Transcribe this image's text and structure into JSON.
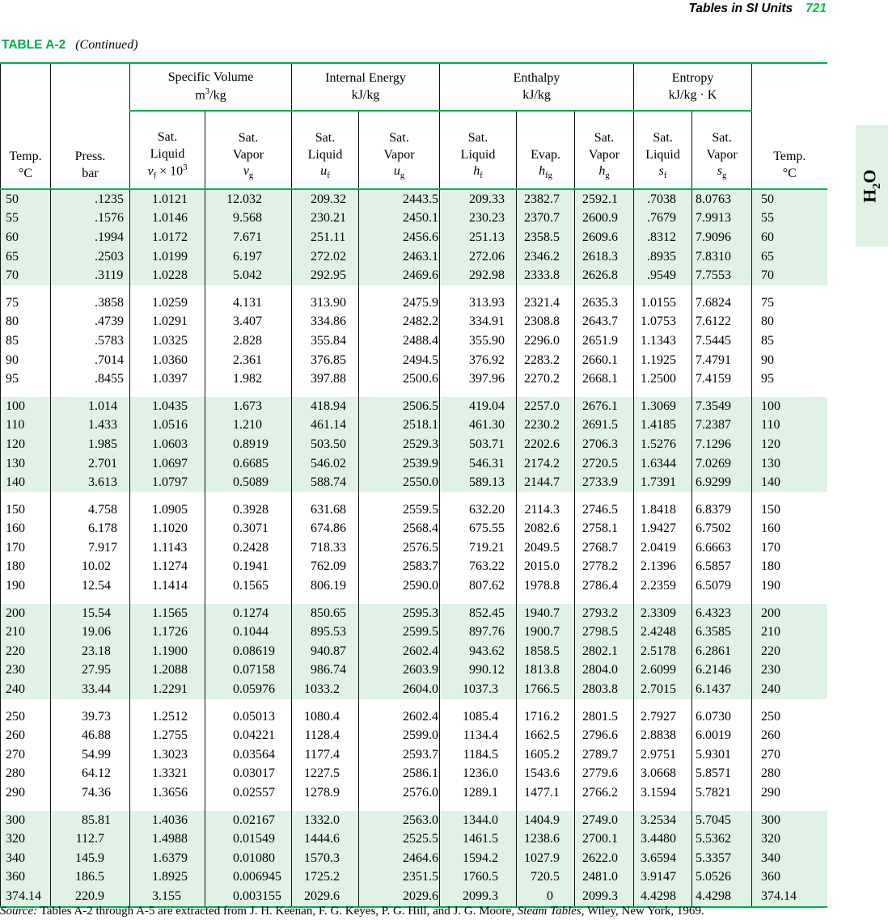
{
  "page": {
    "running_head": "Tables in SI Units",
    "page_number": "721",
    "table_label": "TABLE A-2",
    "table_continued": "(Continued)",
    "side_tab": {
      "pre": "H",
      "sub": "2",
      "post": "O"
    },
    "source": {
      "label": "Source:",
      "text1": " Tables A-2 through A-5 are extracted from J. H. Keenan, F. G. Keyes, P. G. Hill, and J. G. Moore, ",
      "title_italic": "Steam Tables,",
      "text2": " Wiley, New York, 1969."
    }
  },
  "colors": {
    "green_rule": "#00AE4E",
    "green_page_number": "#00C24A",
    "band_background": "#E0F2E6"
  },
  "table": {
    "corner_left": {
      "line1": "Temp.",
      "line2": "°C"
    },
    "corner_press": {
      "line1": "Press.",
      "line2": "bar"
    },
    "corner_right": {
      "line1": "Temp.",
      "line2": "°C"
    },
    "group_headers": {
      "specific_volume": {
        "title": "Specific Volume",
        "unit_base": "m",
        "unit_sup": "3",
        "unit_rest": "/kg"
      },
      "internal_energy": {
        "title": "Internal Energy",
        "unit": "kJ/kg"
      },
      "enthalpy": {
        "title": "Enthalpy",
        "unit": "kJ/kg"
      },
      "entropy": {
        "title": "Entropy",
        "unit": "kJ/kg · K"
      }
    },
    "sub_headers": [
      {
        "l1": "Sat.",
        "l2": "Liquid",
        "var": "v",
        "sub": "f",
        "mult": " × 10",
        "sup": "3"
      },
      {
        "l1": "Sat.",
        "l2": "Vapor",
        "var": "v",
        "sub": "g"
      },
      {
        "l1": "Sat.",
        "l2": "Liquid",
        "var": "u",
        "sub": "f"
      },
      {
        "l1": "Sat.",
        "l2": "Vapor",
        "var": "u",
        "sub": "g"
      },
      {
        "l1": "Sat.",
        "l2": "Liquid",
        "var": "h",
        "sub": "f"
      },
      {
        "l1": "Evap.",
        "var": "h",
        "sub": "fg"
      },
      {
        "l1": "Sat.",
        "l2": "Vapor",
        "var": "h",
        "sub": "g"
      },
      {
        "l1": "Sat.",
        "l2": "Liquid",
        "var": "s",
        "sub": "f"
      },
      {
        "l1": "Sat.",
        "l2": "Vapor",
        "var": "s",
        "sub": "g"
      }
    ],
    "groups": [
      {
        "shaded": true,
        "rows": [
          [
            "50",
            ".1235",
            "1.0121",
            "12.032",
            "209.32",
            "2443.5",
            "209.33",
            "2382.7",
            "2592.1",
            ".7038",
            "8.0763",
            "50"
          ],
          [
            "55",
            ".1576",
            "1.0146",
            "9.568",
            "230.21",
            "2450.1",
            "230.23",
            "2370.7",
            "2600.9",
            ".7679",
            "7.9913",
            "55"
          ],
          [
            "60",
            ".1994",
            "1.0172",
            "7.671",
            "251.11",
            "2456.6",
            "251.13",
            "2358.5",
            "2609.6",
            ".8312",
            "7.9096",
            "60"
          ],
          [
            "65",
            ".2503",
            "1.0199",
            "6.197",
            "272.02",
            "2463.1",
            "272.06",
            "2346.2",
            "2618.3",
            ".8935",
            "7.8310",
            "65"
          ],
          [
            "70",
            ".3119",
            "1.0228",
            "5.042",
            "292.95",
            "2469.6",
            "292.98",
            "2333.8",
            "2626.8",
            ".9549",
            "7.7553",
            "70"
          ]
        ]
      },
      {
        "shaded": false,
        "rows": [
          [
            "75",
            ".3858",
            "1.0259",
            "4.131",
            "313.90",
            "2475.9",
            "313.93",
            "2321.4",
            "2635.3",
            "1.0155",
            "7.6824",
            "75"
          ],
          [
            "80",
            ".4739",
            "1.0291",
            "3.407",
            "334.86",
            "2482.2",
            "334.91",
            "2308.8",
            "2643.7",
            "1.0753",
            "7.6122",
            "80"
          ],
          [
            "85",
            ".5783",
            "1.0325",
            "2.828",
            "355.84",
            "2488.4",
            "355.90",
            "2296.0",
            "2651.9",
            "1.1343",
            "7.5445",
            "85"
          ],
          [
            "90",
            ".7014",
            "1.0360",
            "2.361",
            "376.85",
            "2494.5",
            "376.92",
            "2283.2",
            "2660.1",
            "1.1925",
            "7.4791",
            "90"
          ],
          [
            "95",
            ".8455",
            "1.0397",
            "1.982",
            "397.88",
            "2500.6",
            "397.96",
            "2270.2",
            "2668.1",
            "1.2500",
            "7.4159",
            "95"
          ]
        ]
      },
      {
        "shaded": true,
        "rows": [
          [
            "100",
            "1.014",
            "1.0435",
            "1.673",
            "418.94",
            "2506.5",
            "419.04",
            "2257.0",
            "2676.1",
            "1.3069",
            "7.3549",
            "100"
          ],
          [
            "110",
            "1.433",
            "1.0516",
            "1.210",
            "461.14",
            "2518.1",
            "461.30",
            "2230.2",
            "2691.5",
            "1.4185",
            "7.2387",
            "110"
          ],
          [
            "120",
            "1.985",
            "1.0603",
            "0.8919",
            "503.50",
            "2529.3",
            "503.71",
            "2202.6",
            "2706.3",
            "1.5276",
            "7.1296",
            "120"
          ],
          [
            "130",
            "2.701",
            "1.0697",
            "0.6685",
            "546.02",
            "2539.9",
            "546.31",
            "2174.2",
            "2720.5",
            "1.6344",
            "7.0269",
            "130"
          ],
          [
            "140",
            "3.613",
            "1.0797",
            "0.5089",
            "588.74",
            "2550.0",
            "589.13",
            "2144.7",
            "2733.9",
            "1.7391",
            "6.9299",
            "140"
          ]
        ]
      },
      {
        "shaded": false,
        "rows": [
          [
            "150",
            "4.758",
            "1.0905",
            "0.3928",
            "631.68",
            "2559.5",
            "632.20",
            "2114.3",
            "2746.5",
            "1.8418",
            "6.8379",
            "150"
          ],
          [
            "160",
            "6.178",
            "1.1020",
            "0.3071",
            "674.86",
            "2568.4",
            "675.55",
            "2082.6",
            "2758.1",
            "1.9427",
            "6.7502",
            "160"
          ],
          [
            "170",
            "7.917",
            "1.1143",
            "0.2428",
            "718.33",
            "2576.5",
            "719.21",
            "2049.5",
            "2768.7",
            "2.0419",
            "6.6663",
            "170"
          ],
          [
            "180",
            "10.02",
            "1.1274",
            "0.1941",
            "762.09",
            "2583.7",
            "763.22",
            "2015.0",
            "2778.2",
            "2.1396",
            "6.5857",
            "180"
          ],
          [
            "190",
            "12.54",
            "1.1414",
            "0.1565",
            "806.19",
            "2590.0",
            "807.62",
            "1978.8",
            "2786.4",
            "2.2359",
            "6.5079",
            "190"
          ]
        ]
      },
      {
        "shaded": true,
        "rows": [
          [
            "200",
            "15.54",
            "1.1565",
            "0.1274",
            "850.65",
            "2595.3",
            "852.45",
            "1940.7",
            "2793.2",
            "2.3309",
            "6.4323",
            "200"
          ],
          [
            "210",
            "19.06",
            "1.1726",
            "0.1044",
            "895.53",
            "2599.5",
            "897.76",
            "1900.7",
            "2798.5",
            "2.4248",
            "6.3585",
            "210"
          ],
          [
            "220",
            "23.18",
            "1.1900",
            "0.08619",
            "940.87",
            "2602.4",
            "943.62",
            "1858.5",
            "2802.1",
            "2.5178",
            "6.2861",
            "220"
          ],
          [
            "230",
            "27.95",
            "1.2088",
            "0.07158",
            "986.74",
            "2603.9",
            "990.12",
            "1813.8",
            "2804.0",
            "2.6099",
            "6.2146",
            "230"
          ],
          [
            "240",
            "33.44",
            "1.2291",
            "0.05976",
            "1033.2",
            "2604.0",
            "1037.3",
            "1766.5",
            "2803.8",
            "2.7015",
            "6.1437",
            "240"
          ]
        ]
      },
      {
        "shaded": false,
        "rows": [
          [
            "250",
            "39.73",
            "1.2512",
            "0.05013",
            "1080.4",
            "2602.4",
            "1085.4",
            "1716.2",
            "2801.5",
            "2.7927",
            "6.0730",
            "250"
          ],
          [
            "260",
            "46.88",
            "1.2755",
            "0.04221",
            "1128.4",
            "2599.0",
            "1134.4",
            "1662.5",
            "2796.6",
            "2.8838",
            "6.0019",
            "260"
          ],
          [
            "270",
            "54.99",
            "1.3023",
            "0.03564",
            "1177.4",
            "2593.7",
            "1184.5",
            "1605.2",
            "2789.7",
            "2.9751",
            "5.9301",
            "270"
          ],
          [
            "280",
            "64.12",
            "1.3321",
            "0.03017",
            "1227.5",
            "2586.1",
            "1236.0",
            "1543.6",
            "2779.6",
            "3.0668",
            "5.8571",
            "280"
          ],
          [
            "290",
            "74.36",
            "1.3656",
            "0.02557",
            "1278.9",
            "2576.0",
            "1289.1",
            "1477.1",
            "2766.2",
            "3.1594",
            "5.7821",
            "290"
          ]
        ]
      },
      {
        "shaded": true,
        "rows": [
          [
            "300",
            "85.81",
            "1.4036",
            "0.02167",
            "1332.0",
            "2563.0",
            "1344.0",
            "1404.9",
            "2749.0",
            "3.2534",
            "5.7045",
            "300"
          ],
          [
            "320",
            "112.7",
            "1.4988",
            "0.01549",
            "1444.6",
            "2525.5",
            "1461.5",
            "1238.6",
            "2700.1",
            "3.4480",
            "5.5362",
            "320"
          ],
          [
            "340",
            "145.9",
            "1.6379",
            "0.01080",
            "1570.3",
            "2464.6",
            "1594.2",
            "1027.9",
            "2622.0",
            "3.6594",
            "5.3357",
            "340"
          ],
          [
            "360",
            "186.5",
            "1.8925",
            "0.006945",
            "1725.2",
            "2351.5",
            "1760.5",
            "720.5",
            "2481.0",
            "3.9147",
            "5.0526",
            "360"
          ],
          [
            "374.14",
            "220.9",
            "3.155",
            "0.003155",
            "2029.6",
            "2029.6",
            "2099.3",
            "0",
            "2099.3",
            "4.4298",
            "4.4298",
            "374.14"
          ]
        ]
      }
    ]
  }
}
